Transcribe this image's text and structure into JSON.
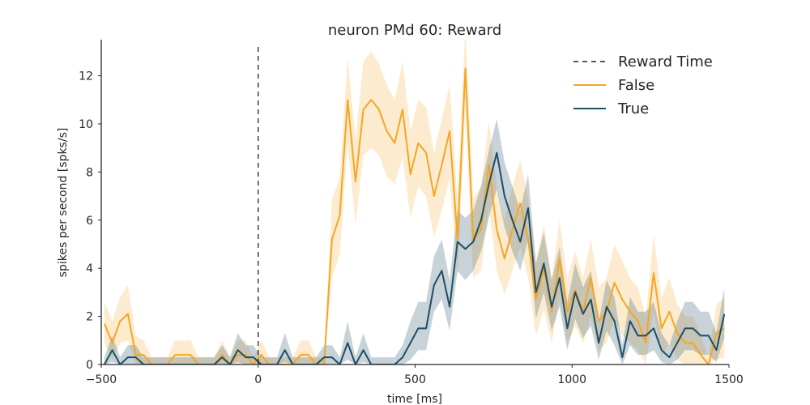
{
  "chart_data": {
    "type": "line",
    "title": "neuron PMd 60: Reward",
    "xlabel": "time [ms]",
    "ylabel": "spikes per second [spks/s]",
    "xlim": [
      -500,
      1500
    ],
    "ylim": [
      0,
      13.5
    ],
    "xticks": [
      -500,
      0,
      500,
      1000,
      1500
    ],
    "yticks": [
      0,
      2,
      4,
      6,
      8,
      10,
      12
    ],
    "legend_position": "top-right",
    "vline": {
      "name": "Reward Time",
      "x": 0,
      "color": "#222222"
    },
    "x": [
      -490,
      -465,
      -440,
      -415,
      -390,
      -365,
      -340,
      -315,
      -290,
      -265,
      -240,
      -215,
      -190,
      -165,
      -140,
      -115,
      -90,
      -65,
      -40,
      -15,
      10,
      35,
      60,
      85,
      110,
      135,
      160,
      185,
      210,
      235,
      260,
      285,
      310,
      335,
      360,
      385,
      410,
      435,
      460,
      485,
      510,
      535,
      560,
      585,
      610,
      635,
      660,
      685,
      710,
      735,
      760,
      785,
      810,
      835,
      860,
      885,
      910,
      935,
      960,
      985,
      1010,
      1035,
      1060,
      1085,
      1110,
      1135,
      1160,
      1185,
      1210,
      1235,
      1260,
      1285,
      1310,
      1335,
      1360,
      1385,
      1410,
      1435,
      1460,
      1485
    ],
    "series": [
      {
        "name": "False",
        "color": "#f5a623",
        "values": [
          1.7,
          0.9,
          1.8,
          2.1,
          0.4,
          0.4,
          0,
          0,
          0,
          0.4,
          0.4,
          0.4,
          0,
          0,
          0,
          0.4,
          0,
          0.4,
          0.4,
          0,
          0.4,
          0,
          0,
          0,
          0,
          0.4,
          0.4,
          0,
          0,
          5.2,
          6.2,
          11.0,
          7.6,
          10.6,
          11.0,
          10.6,
          9.7,
          9.2,
          10.6,
          7.9,
          9.2,
          8.8,
          7.0,
          8.3,
          9.7,
          5.2,
          12.3,
          5.2,
          5.6,
          8.3,
          5.6,
          4.4,
          5.6,
          6.7,
          5.2,
          2.7,
          4.0,
          2.2,
          4.4,
          2.2,
          3.1,
          2.2,
          3.6,
          1.8,
          2.2,
          3.4,
          2.7,
          2.2,
          1.8,
          0.9,
          3.8,
          1.5,
          2.2,
          1.3,
          0.9,
          0.9,
          0.4,
          0,
          1.3,
          1.5
        ],
        "upper": [
          2.6,
          1.8,
          2.8,
          3.3,
          1.2,
          1.0,
          0.3,
          0.3,
          0.3,
          1.0,
          1.0,
          1.0,
          0.3,
          0.3,
          0.3,
          1.0,
          0.3,
          1.0,
          1.0,
          0.3,
          1.0,
          0.3,
          0.3,
          0.3,
          0.3,
          1.0,
          1.0,
          0.3,
          0.3,
          6.8,
          7.8,
          12.8,
          9.4,
          12.6,
          13.0,
          12.5,
          11.6,
          11.0,
          12.6,
          9.7,
          11.0,
          10.7,
          8.8,
          10.2,
          11.6,
          6.9,
          14.0,
          6.9,
          7.4,
          10.1,
          7.4,
          6.0,
          7.4,
          8.5,
          6.9,
          4.3,
          5.8,
          3.6,
          6.0,
          3.6,
          4.7,
          3.6,
          5.2,
          3.2,
          3.6,
          5.0,
          4.3,
          3.6,
          3.2,
          2.0,
          5.4,
          2.8,
          3.6,
          2.5,
          2.0,
          2.0,
          1.2,
          0.3,
          2.5,
          2.8
        ],
        "lower": [
          0.9,
          0.2,
          0.9,
          1.0,
          0,
          0,
          0,
          0,
          0,
          0,
          0,
          0,
          0,
          0,
          0,
          0,
          0,
          0,
          0,
          0,
          0,
          0,
          0,
          0,
          0,
          0,
          0,
          0,
          0,
          3.6,
          4.6,
          9.2,
          5.8,
          8.7,
          9.0,
          8.7,
          7.8,
          7.5,
          8.6,
          6.1,
          7.4,
          7.0,
          5.3,
          6.4,
          7.8,
          3.6,
          10.6,
          3.6,
          3.9,
          6.5,
          3.9,
          2.9,
          3.9,
          4.9,
          3.6,
          1.2,
          2.3,
          0.9,
          2.8,
          0.9,
          1.6,
          0.9,
          2.0,
          0.6,
          0.9,
          1.9,
          1.2,
          0.9,
          0.6,
          0,
          2.2,
          0.3,
          0.9,
          0.2,
          0,
          0,
          0,
          0,
          0.2,
          0.3
        ]
      },
      {
        "name": "True",
        "color": "#1f4e66",
        "values": [
          0,
          0.6,
          0,
          0.3,
          0.3,
          0,
          0,
          0,
          0,
          0,
          0,
          0,
          0,
          0,
          0,
          0.3,
          0,
          0.6,
          0.3,
          0.3,
          0,
          0,
          0,
          0.6,
          0,
          0,
          0,
          0,
          0.3,
          0.3,
          0,
          0.9,
          0,
          0.6,
          0,
          0,
          0,
          0,
          0.3,
          0.9,
          1.5,
          1.5,
          3.3,
          3.9,
          2.4,
          5.1,
          4.8,
          5.1,
          6.0,
          7.5,
          8.8,
          7.0,
          6.0,
          5.1,
          6.5,
          3.0,
          4.2,
          2.4,
          3.6,
          1.5,
          3.0,
          2.1,
          2.7,
          0.9,
          2.4,
          1.8,
          0.3,
          1.8,
          1.2,
          1.2,
          1.5,
          0.6,
          0.3,
          0.9,
          1.5,
          1.5,
          1.2,
          1.2,
          0.6,
          2.1
        ],
        "upper": [
          0.3,
          1.2,
          0.3,
          0.8,
          0.8,
          0.3,
          0.3,
          0.3,
          0.3,
          0.3,
          0.3,
          0.3,
          0.3,
          0.3,
          0.3,
          0.8,
          0.3,
          1.3,
          0.8,
          0.8,
          0.3,
          0.3,
          0.3,
          1.3,
          0.3,
          0.3,
          0.3,
          0.3,
          0.8,
          0.8,
          0.3,
          1.8,
          0.3,
          1.3,
          0.3,
          0.3,
          0.3,
          0.3,
          0.8,
          1.8,
          2.6,
          2.6,
          4.5,
          5.2,
          3.5,
          6.4,
          6.1,
          6.4,
          7.4,
          8.9,
          10.2,
          8.4,
          7.4,
          6.4,
          7.9,
          4.2,
          5.5,
          3.5,
          4.9,
          2.6,
          4.2,
          3.2,
          3.9,
          1.8,
          3.5,
          2.8,
          0.8,
          2.8,
          2.2,
          2.2,
          2.6,
          1.3,
          0.8,
          1.8,
          2.6,
          2.6,
          2.2,
          2.2,
          1.3,
          3.2
        ],
        "lower": [
          0,
          0.1,
          0,
          0,
          0,
          0,
          0,
          0,
          0,
          0,
          0,
          0,
          0,
          0,
          0,
          0,
          0,
          0.1,
          0,
          0,
          0,
          0,
          0,
          0.1,
          0,
          0,
          0,
          0,
          0,
          0,
          0,
          0.2,
          0,
          0.1,
          0,
          0,
          0,
          0,
          0,
          0.2,
          0.6,
          0.6,
          2.2,
          2.7,
          1.4,
          3.9,
          3.5,
          3.9,
          4.7,
          6.1,
          7.3,
          5.7,
          4.7,
          3.9,
          5.2,
          1.9,
          3.0,
          1.4,
          2.4,
          0.6,
          1.9,
          1.1,
          1.6,
          0.2,
          1.4,
          0.8,
          0,
          0.8,
          0.4,
          0.4,
          0.6,
          0.1,
          0,
          0.2,
          0.6,
          0.6,
          0.4,
          0.4,
          0.1,
          1.1
        ]
      }
    ]
  }
}
